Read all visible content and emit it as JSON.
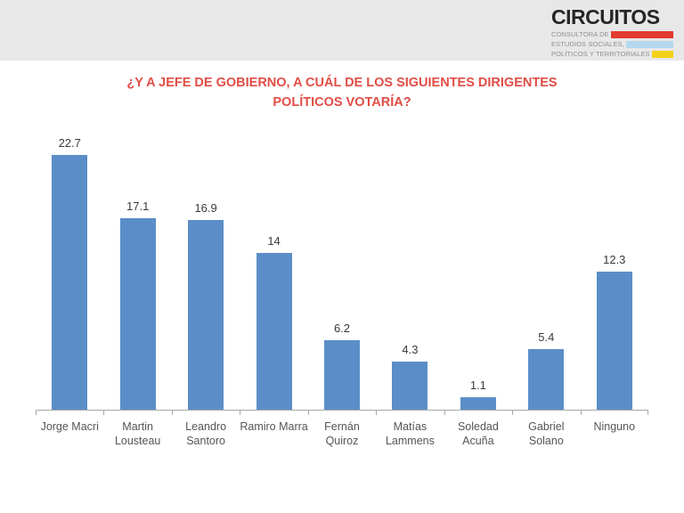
{
  "header": {
    "band_color": "#e8e8e8",
    "logo": {
      "brand": "CIRCUITOS",
      "brand_color": "#262626",
      "tagline_lines": [
        {
          "text": "CONSULTORA DE",
          "bar_color": "#e23a2e"
        },
        {
          "text": "ESTUDIOS SOCIALES,",
          "bar_color": "#b5d8ef"
        },
        {
          "text": "POLÍTICOS Y TERRITORIALES",
          "bar_color": "#f3d117"
        }
      ],
      "tagline_text_color": "#8f8f8f"
    }
  },
  "title": {
    "text": "¿Y A JEFE DE GOBIERNO, A CUÁL DE LOS SIGUIENTES DIRIGENTES\nPOLÍTICOS VOTARÍA?",
    "color": "#e14d45"
  },
  "chart_data": {
    "type": "bar",
    "title": "¿Y a Jefe de Gobierno, a cuál de los siguientes dirigentes políticos votaría?",
    "categories": [
      "Jorge Macri",
      "Martin\nLousteau",
      "Leandro\nSantoro",
      "Ramiro Marra",
      "Fernán\nQuiroz",
      "Matías\nLammens",
      "Soledad\nAcuña",
      "Gabriel\nSolano",
      "Ninguno"
    ],
    "values": [
      22.7,
      17.1,
      16.9,
      14,
      6.2,
      4.3,
      1.1,
      5.4,
      12.3
    ],
    "value_labels": [
      "22.7",
      "17.1",
      "16.9",
      "14",
      "6.2",
      "4.3",
      "1.1",
      "5.4",
      "12.3"
    ],
    "xlabel": "",
    "ylabel": "",
    "ylim": [
      0,
      24
    ],
    "grid": false,
    "legend": false,
    "bar_color": "#5b8ec8",
    "axis_color": "#a8a8a8",
    "value_label_color": "#3a3a3a",
    "category_label_color": "#555555"
  }
}
